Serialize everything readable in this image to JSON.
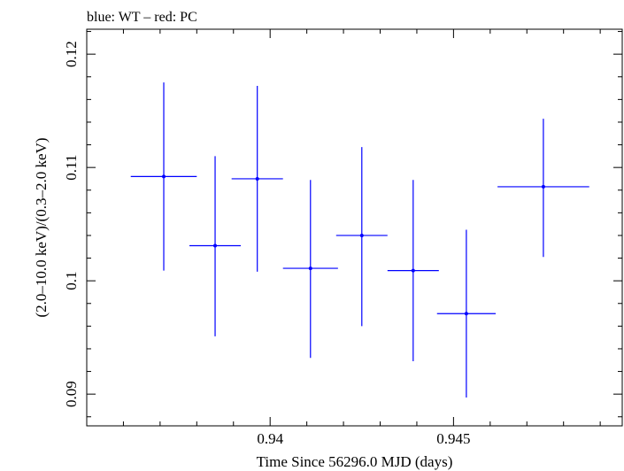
{
  "chart_data": {
    "type": "scatter",
    "title": "blue: WT – red: PC",
    "xlabel": "Time Since 56296.0 MJD (days)",
    "ylabel": "(2.0–10.0 keV)/(0.3–2.0 keV)",
    "xlim": [
      0.935,
      0.9496
    ],
    "ylim": [
      0.0872,
      0.1222
    ],
    "x_ticks": [
      0.94,
      0.945
    ],
    "x_tick_labels": [
      "0.94",
      "0.945"
    ],
    "y_ticks": [
      0.09,
      0.1,
      0.11,
      0.12
    ],
    "y_tick_labels": [
      "0.09",
      "0.1",
      "0.11",
      "0.12"
    ],
    "grid": false,
    "series": [
      {
        "name": "WT",
        "color": "#0000ff",
        "points": [
          {
            "x": 0.9371,
            "xerr": 0.0009,
            "y": 0.1092,
            "ylo": 0.1009,
            "yhi": 0.1175
          },
          {
            "x": 0.9385,
            "xerr": 0.0007,
            "y": 0.1031,
            "ylo": 0.0951,
            "yhi": 0.111
          },
          {
            "x": 0.93965,
            "xerr": 0.0007,
            "y": 0.109,
            "ylo": 0.1008,
            "yhi": 0.1172
          },
          {
            "x": 0.9411,
            "xerr": 0.00075,
            "y": 0.1011,
            "ylo": 0.0932,
            "yhi": 0.1089
          },
          {
            "x": 0.9425,
            "xerr": 0.0007,
            "y": 0.104,
            "ylo": 0.096,
            "yhi": 0.1118
          },
          {
            "x": 0.9439,
            "xerr": 0.0007,
            "y": 0.1009,
            "ylo": 0.0929,
            "yhi": 0.1089
          },
          {
            "x": 0.94535,
            "xerr": 0.0008,
            "y": 0.0971,
            "ylo": 0.0897,
            "yhi": 0.1045
          },
          {
            "x": 0.94745,
            "xerr": 0.00125,
            "y": 0.1083,
            "ylo": 0.1021,
            "yhi": 0.1143
          }
        ]
      }
    ]
  }
}
